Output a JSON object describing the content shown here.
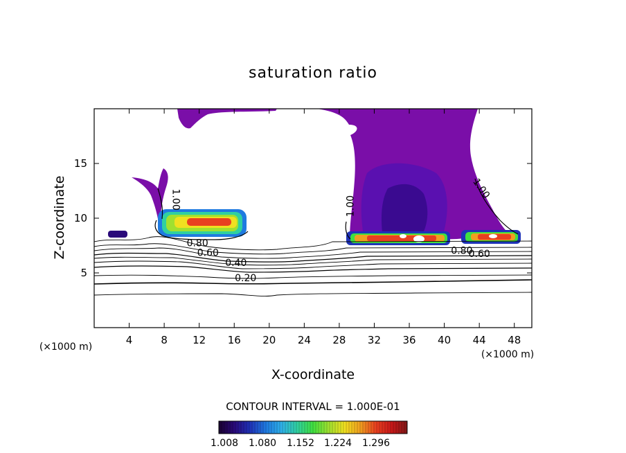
{
  "chart_data": {
    "type": "contour",
    "title": "saturation ratio",
    "xlabel": "X-coordinate",
    "ylabel": "Z-coordinate",
    "x_unit_left": "(×1000 m)",
    "x_unit_right": "(×1000 m)",
    "xlim": [
      0,
      50
    ],
    "ylim": [
      0,
      20
    ],
    "xticks": [
      4,
      8,
      12,
      16,
      20,
      24,
      28,
      32,
      36,
      40,
      44,
      48
    ],
    "yticks": [
      5,
      10,
      15
    ],
    "contour_interval_text": "CONTOUR INTERVAL = 1.000E-01",
    "contour_labels": [
      {
        "text": "1.00",
        "x": 9.3,
        "y": 11.7,
        "rotate": 90
      },
      {
        "text": "1.00",
        "x": 29.3,
        "y": 11.1,
        "rotate": -90
      },
      {
        "text": "1.00",
        "x": 44.2,
        "y": 12.7,
        "rotate": 55
      },
      {
        "text": "0.80",
        "x": 11.8,
        "y": 7.7,
        "rotate": 0
      },
      {
        "text": "0.60",
        "x": 13.0,
        "y": 6.8,
        "rotate": 0
      },
      {
        "text": "0.40",
        "x": 16.2,
        "y": 5.9,
        "rotate": 0
      },
      {
        "text": "0.20",
        "x": 17.3,
        "y": 4.5,
        "rotate": 0
      },
      {
        "text": "0.80",
        "x": 42.0,
        "y": 7.0,
        "rotate": 0
      },
      {
        "text": "0.60",
        "x": 44.0,
        "y": 6.7,
        "rotate": 0
      }
    ],
    "colorbar": {
      "ticks": [
        "1.008",
        "1.080",
        "1.152",
        "1.224",
        "1.296"
      ],
      "colors": [
        "#1a0030",
        "#2a0a7a",
        "#1f33b8",
        "#1f7ae0",
        "#2fb0e8",
        "#30d0a0",
        "#40e040",
        "#a0e030",
        "#f0e020",
        "#f0a020",
        "#e84020",
        "#c81818",
        "#801818"
      ]
    },
    "fill_colors": {
      "supersat_low": "#7a0ea8",
      "supersat_mid": "#5a10b0",
      "supersat_deep": "#3a0a90"
    }
  }
}
